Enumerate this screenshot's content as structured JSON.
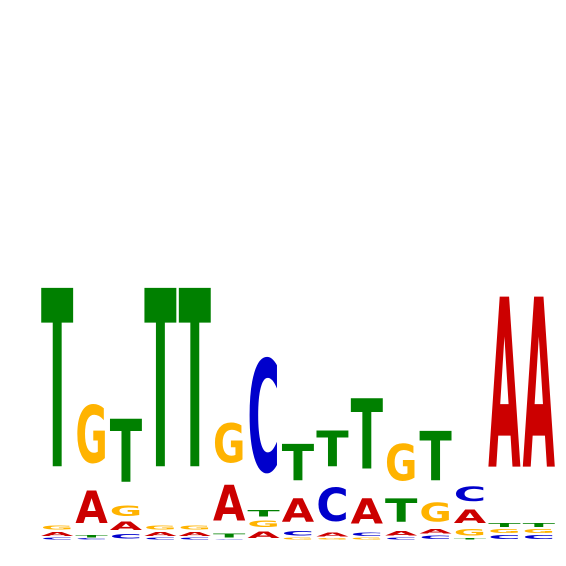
{
  "chart_data": {
    "type": "sequence-logo",
    "title": "",
    "xlabel": "",
    "ylabel": "",
    "alphabet": [
      "A",
      "C",
      "G",
      "T"
    ],
    "ylim_bits": [
      0,
      2
    ],
    "colors": {
      "A": "#cc0000",
      "C": "#0000cc",
      "G": "#ffb300",
      "T": "#008000"
    },
    "positions": [
      {
        "pos": 1,
        "A": 0.02,
        "C": 0.01,
        "G": 0.02,
        "T": 0.95
      },
      {
        "pos": 2,
        "A": 0.35,
        "C": 0.01,
        "G": 0.61,
        "T": 0.03
      },
      {
        "pos": 3,
        "A": 0.1,
        "C": 0.05,
        "G": 0.12,
        "T": 0.73
      },
      {
        "pos": 4,
        "A": 0.02,
        "C": 0.01,
        "G": 0.02,
        "T": 0.95
      },
      {
        "pos": 5,
        "A": 0.02,
        "C": 0.01,
        "G": 0.02,
        "T": 0.95
      },
      {
        "pos": 6,
        "A": 0.45,
        "C": 0.01,
        "G": 0.49,
        "T": 0.05
      },
      {
        "pos": 7,
        "A": 0.05,
        "C": 0.85,
        "G": 0.05,
        "T": 0.05
      },
      {
        "pos": 8,
        "A": 0.35,
        "C": 0.07,
        "G": 0.03,
        "T": 0.55
      },
      {
        "pos": 9,
        "A": 0.05,
        "C": 0.45,
        "G": 0.02,
        "T": 0.48
      },
      {
        "pos": 10,
        "A": 0.25,
        "C": 0.03,
        "G": 0.02,
        "T": 0.7
      },
      {
        "pos": 11,
        "A": 0.07,
        "C": 0.03,
        "G": 0.55,
        "T": 0.35
      },
      {
        "pos": 12,
        "A": 0.06,
        "C": 0.04,
        "G": 0.25,
        "T": 0.65
      },
      {
        "pos": 13,
        "A": 0.38,
        "C": 0.4,
        "G": 0.18,
        "T": 0.04
      },
      {
        "pos": 14,
        "A": 0.94,
        "C": 0.02,
        "G": 0.02,
        "T": 0.02
      },
      {
        "pos": 15,
        "A": 0.94,
        "C": 0.02,
        "G": 0.02,
        "T": 0.02
      }
    ]
  }
}
